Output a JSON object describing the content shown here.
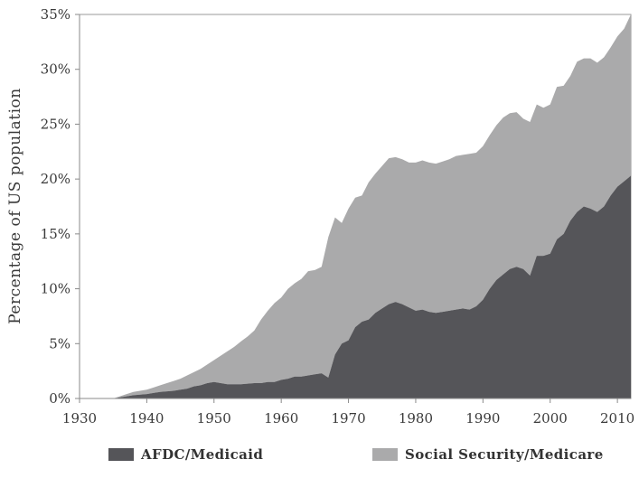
{
  "chart_data": {
    "type": "area",
    "stacked": true,
    "title": "",
    "xlabel": "",
    "ylabel": "Percentage of US population",
    "xlim": [
      1930,
      2012
    ],
    "ylim": [
      0,
      35
    ],
    "x_ticks": [
      "1930",
      "1940",
      "1950",
      "1960",
      "1970",
      "1980",
      "1990",
      "2000",
      "2010"
    ],
    "y_ticks": [
      "0%",
      "5%",
      "10%",
      "15%",
      "20%",
      "25%",
      "30%",
      "35%"
    ],
    "grid": false,
    "legend_position": "bottom",
    "x": [
      1930,
      1935,
      1936,
      1937,
      1938,
      1939,
      1940,
      1941,
      1942,
      1943,
      1944,
      1945,
      1946,
      1947,
      1948,
      1949,
      1950,
      1951,
      1952,
      1953,
      1954,
      1955,
      1956,
      1957,
      1958,
      1959,
      1960,
      1961,
      1962,
      1963,
      1964,
      1965,
      1966,
      1967,
      1968,
      1969,
      1970,
      1971,
      1972,
      1973,
      1974,
      1975,
      1976,
      1977,
      1978,
      1979,
      1980,
      1981,
      1982,
      1983,
      1984,
      1985,
      1986,
      1987,
      1988,
      1989,
      1990,
      1991,
      1992,
      1993,
      1994,
      1995,
      1996,
      1997,
      1998,
      1999,
      2000,
      2001,
      2002,
      2003,
      2004,
      2005,
      2006,
      2007,
      2008,
      2009,
      2010,
      2011,
      2012
    ],
    "series": [
      {
        "name": "AFDC/Medicaid",
        "color": "#555559",
        "values": [
          0,
          0,
          0.1,
          0.2,
          0.3,
          0.35,
          0.4,
          0.5,
          0.6,
          0.65,
          0.7,
          0.8,
          0.9,
          1.1,
          1.2,
          1.4,
          1.5,
          1.4,
          1.3,
          1.3,
          1.3,
          1.35,
          1.4,
          1.4,
          1.5,
          1.5,
          1.7,
          1.8,
          2.0,
          2.0,
          2.1,
          2.2,
          2.3,
          1.9,
          4.0,
          5.0,
          5.3,
          6.5,
          7.0,
          7.2,
          7.8,
          8.2,
          8.6,
          8.8,
          8.6,
          8.3,
          8.0,
          8.1,
          7.9,
          7.8,
          7.9,
          8.0,
          8.1,
          8.2,
          8.1,
          8.4,
          9.0,
          10.0,
          10.8,
          11.3,
          11.8,
          12.0,
          11.8,
          11.2,
          13.0,
          13.0,
          13.2,
          14.5,
          15.0,
          16.2,
          17.0,
          17.5,
          17.3,
          17.0,
          17.5,
          18.5,
          19.3,
          19.8,
          20.3
        ]
      },
      {
        "name": "Social Security/Medicare",
        "color": "#aaaaab",
        "values": [
          0,
          0,
          0.1,
          0.2,
          0.3,
          0.35,
          0.4,
          0.5,
          0.6,
          0.75,
          0.9,
          1.0,
          1.2,
          1.3,
          1.5,
          1.7,
          2.0,
          2.5,
          3.0,
          3.4,
          3.9,
          4.3,
          4.8,
          5.8,
          6.5,
          7.2,
          7.5,
          8.2,
          8.5,
          8.9,
          9.5,
          9.5,
          9.7,
          12.8,
          12.5,
          11.0,
          12.0,
          11.8,
          11.5,
          12.5,
          12.7,
          13.0,
          13.3,
          13.2,
          13.2,
          13.2,
          13.5,
          13.6,
          13.6,
          13.6,
          13.7,
          13.8,
          14.0,
          14.0,
          14.2,
          14.0,
          14.0,
          14.0,
          14.1,
          14.3,
          14.2,
          14.1,
          13.7,
          14.0,
          13.8,
          13.5,
          13.6,
          13.9,
          13.5,
          13.2,
          13.7,
          13.5,
          13.7,
          13.6,
          13.6,
          13.5,
          13.7,
          13.9,
          14.7
        ]
      }
    ]
  }
}
